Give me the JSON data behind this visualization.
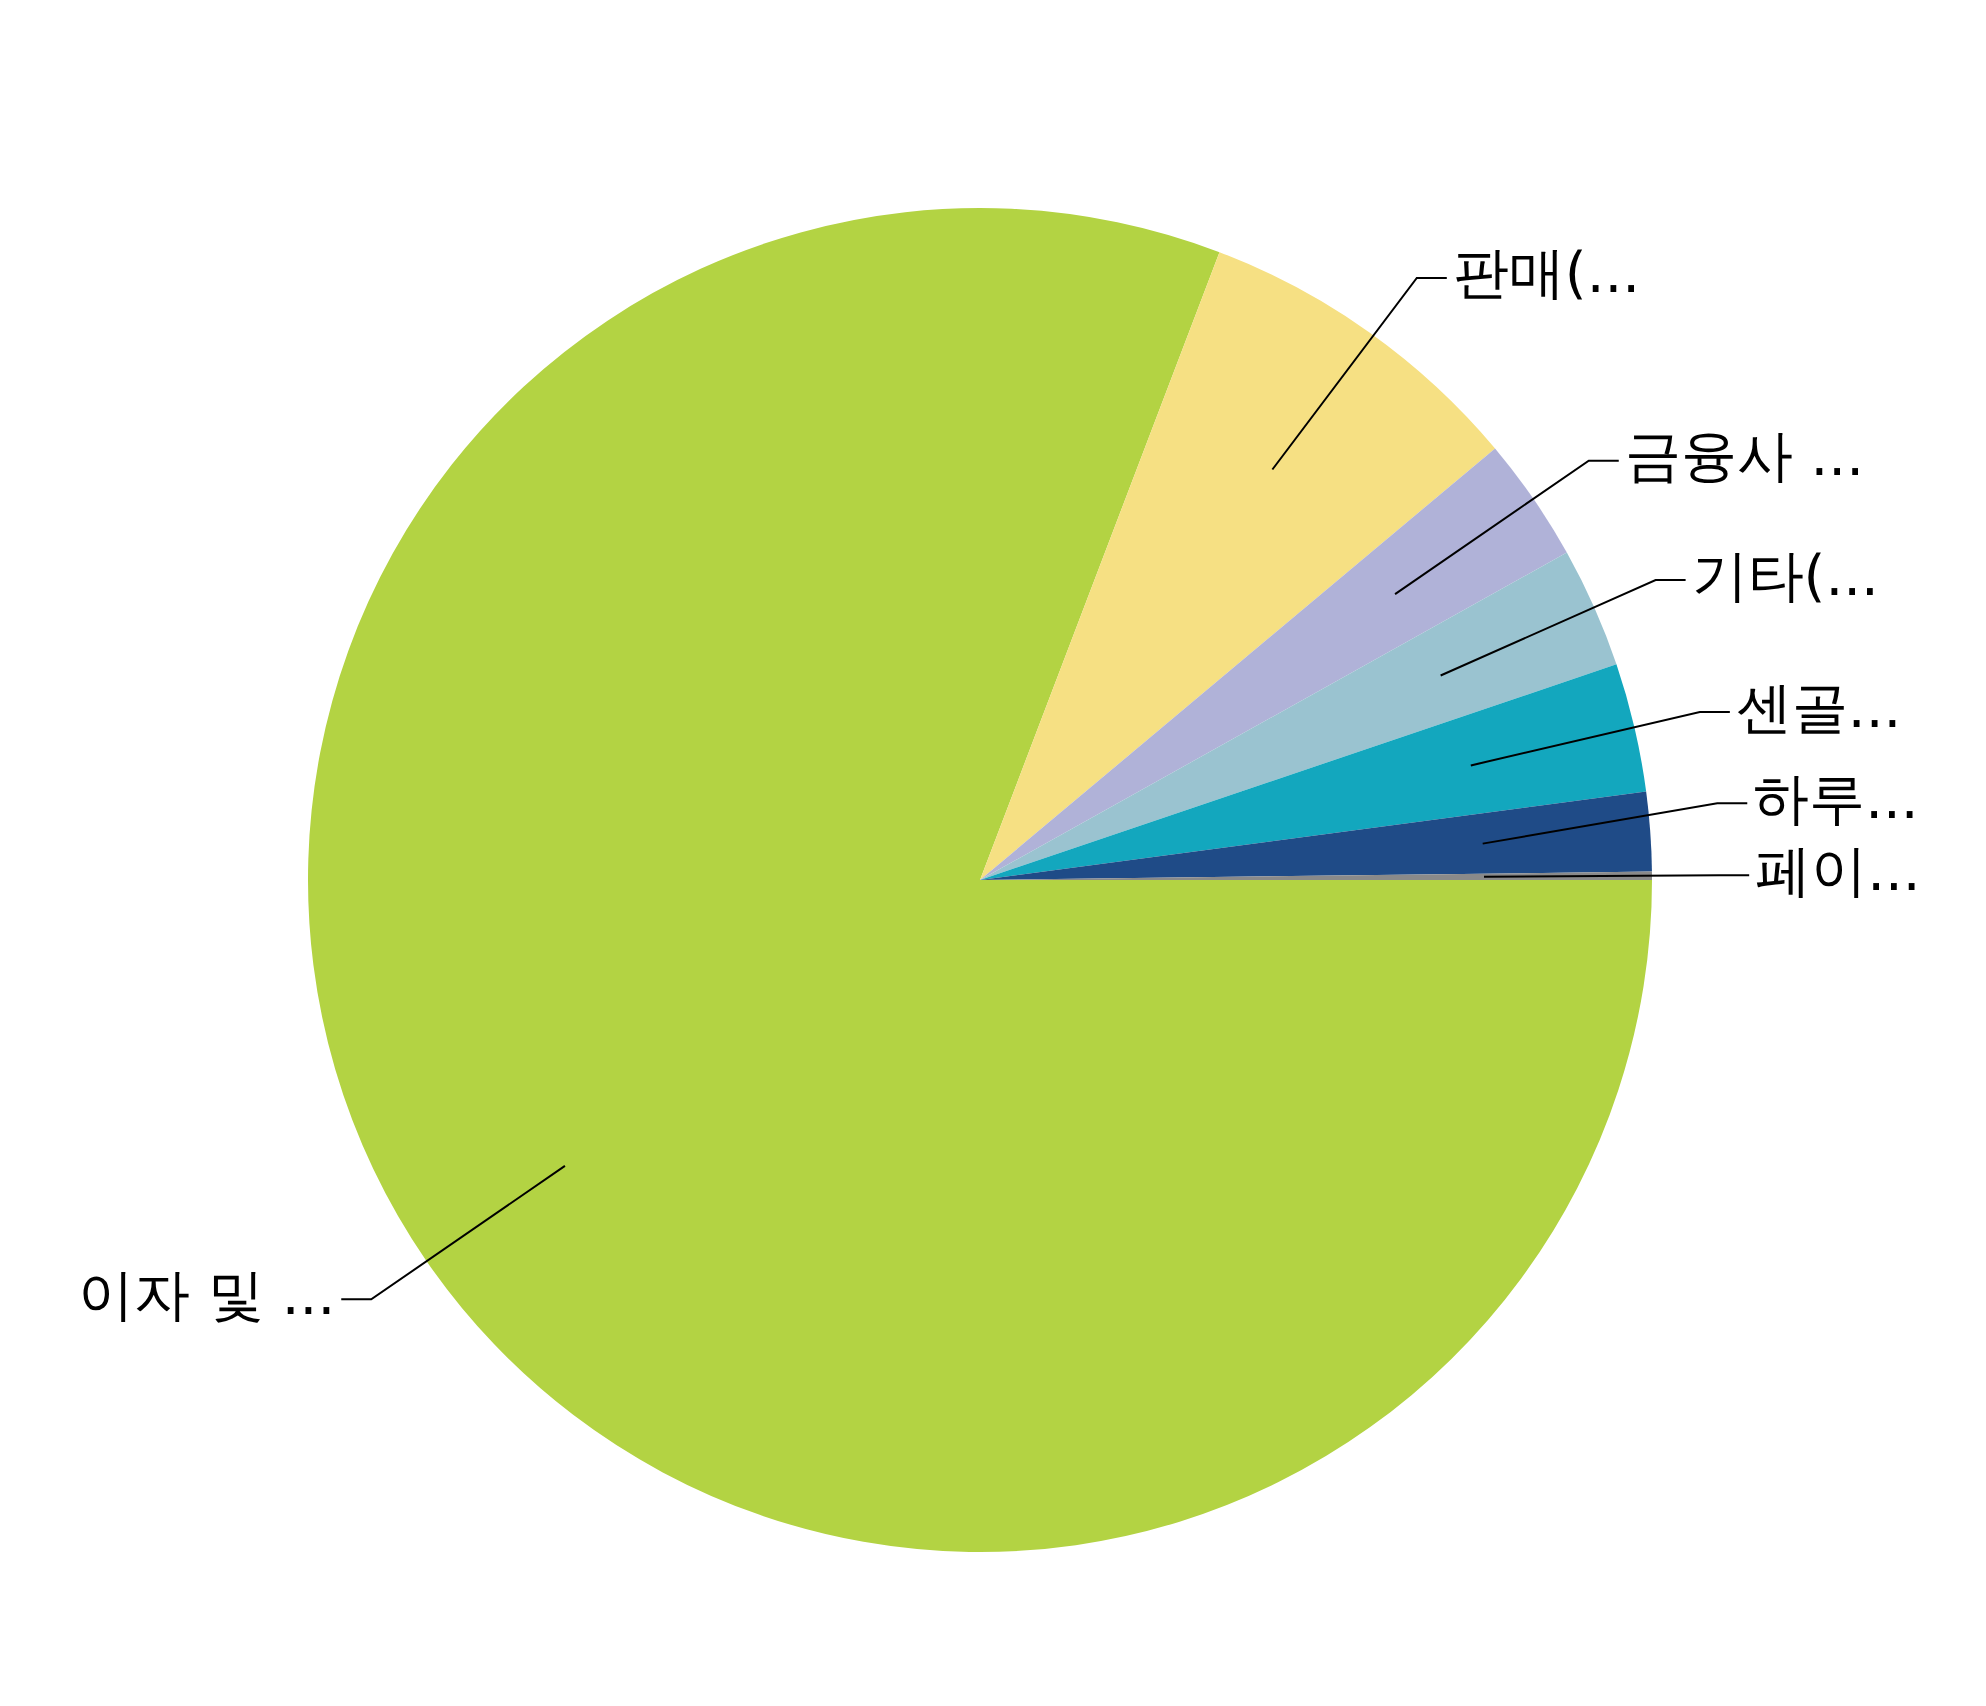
{
  "chart_data": {
    "type": "pie",
    "categories": [
      "이자 및 ...",
      "판매(...",
      "금융사 ...",
      "기타(...",
      "센골...",
      "하루...",
      "페이..."
    ],
    "values": [
      80.8,
      8.1,
      3.0,
      2.9,
      3.1,
      1.9,
      0.2
    ],
    "colors": [
      "#b3d343",
      "#f6e083",
      "#b0b2d8",
      "#9ac3d0",
      "#13a7be",
      "#1f4b87",
      "#8a8a8a"
    ],
    "legend": false
  }
}
